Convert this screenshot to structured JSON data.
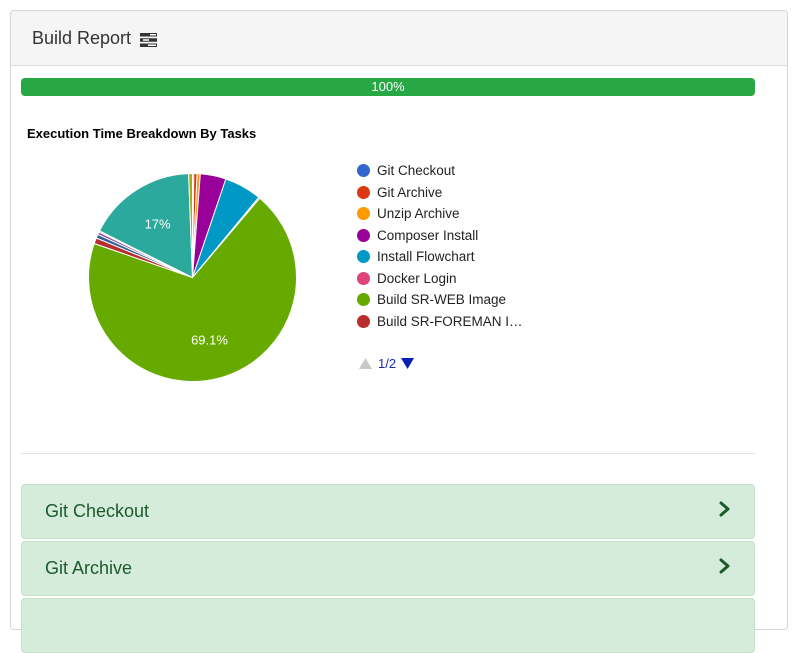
{
  "panel": {
    "title": "Build Report",
    "title_icon": "tasks-icon"
  },
  "progress": {
    "value": 100,
    "label": "100%",
    "color": "#28a745"
  },
  "chart_data": {
    "type": "pie",
    "title": "Execution Time Breakdown By Tasks",
    "slices": [
      {
        "name": "Git Checkout",
        "value": 0.2,
        "color": "#3366cc"
      },
      {
        "name": "Git Archive",
        "value": 0.5,
        "color": "#dc3912"
      },
      {
        "name": "Unzip Archive",
        "value": 0.5,
        "color": "#ff9900"
      },
      {
        "name": "Composer Install",
        "value": 4.0,
        "color": "#990099"
      },
      {
        "name": "Install Flowchart",
        "value": 5.8,
        "color": "#0099c6"
      },
      {
        "name": "Docker Login",
        "value": 0.2,
        "color": "#dd4477"
      },
      {
        "name": "Build SR-WEB Image",
        "value": 69.1,
        "color": "#66aa00",
        "label": "69.1%"
      },
      {
        "name": "Build SR-FOREMAN Image",
        "value": 0.9,
        "color": "#b82e2e"
      },
      {
        "name": "",
        "value": 0.6,
        "color": "#316395"
      },
      {
        "name": "",
        "value": 0.4,
        "color": "#994499"
      },
      {
        "name": "",
        "value": 0.2,
        "color": "#22aa99"
      },
      {
        "name": "",
        "value": 17.0,
        "color": "#2aa99c",
        "label": "17%"
      },
      {
        "name": "",
        "value": 0.6,
        "color": "#aaaa11"
      }
    ],
    "legend_position": "right"
  },
  "legend": {
    "items": [
      {
        "label": "Git Checkout",
        "color": "#3366cc"
      },
      {
        "label": "Git Archive",
        "color": "#dc3912"
      },
      {
        "label": "Unzip Archive",
        "color": "#ff9900"
      },
      {
        "label": "Composer Install",
        "color": "#990099"
      },
      {
        "label": "Install Flowchart",
        "color": "#0099c6"
      },
      {
        "label": "Docker Login",
        "color": "#dd4477"
      },
      {
        "label": "Build SR-WEB Image",
        "color": "#66aa00"
      },
      {
        "label": "Build SR-FOREMAN I…",
        "color": "#b82e2e"
      }
    ],
    "pager": {
      "text": "1/2",
      "prev_icon": "triangle-up-icon",
      "next_icon": "triangle-down-icon"
    }
  },
  "tasks": [
    {
      "label": "Git Checkout",
      "icon": "chevron-right-icon"
    },
    {
      "label": "Git Archive",
      "icon": "chevron-right-icon"
    }
  ]
}
